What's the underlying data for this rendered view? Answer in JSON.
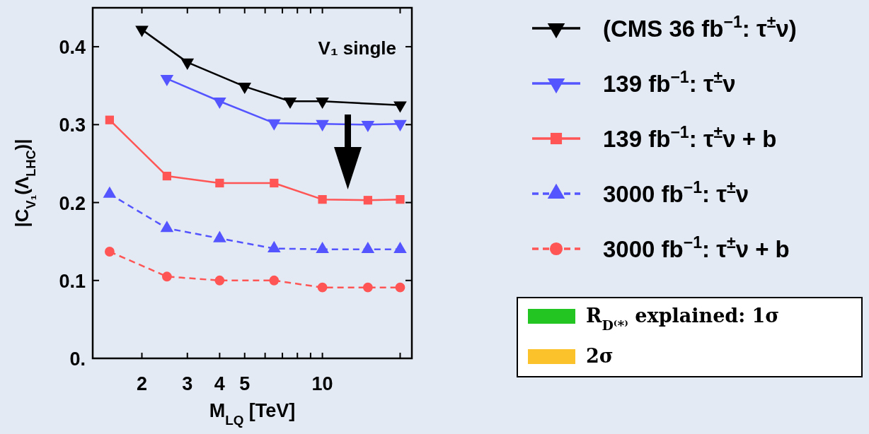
{
  "chart_data": {
    "type": "line",
    "xlabel": "M$_{LQ}$ [TeV]",
    "ylabel": "|C$_{V₁}$(Λ$_{LHC}$)|",
    "log": "x",
    "xlim": [
      1.29,
      22.2
    ],
    "ylim": [
      0,
      0.45
    ],
    "xticks": [
      2,
      3,
      4,
      5,
      {
        "value": 6,
        "label": null
      },
      {
        "value": 7,
        "label": null
      },
      {
        "value": 8,
        "label": null
      },
      {
        "value": 9,
        "label": null
      },
      10,
      {
        "value": 20,
        "label": null
      }
    ],
    "yticks": [
      {
        "value": 0,
        "label": "0."
      },
      0.1,
      0.2,
      0.3,
      0.4
    ],
    "grid": false,
    "legend": "right",
    "series": [
      {
        "name": "(CMS 36 fb$^{−1}$: τ$^{±}$ν)",
        "color": "#000000",
        "marker": "triangle-down",
        "line_style": "solid",
        "x": [
          2,
          3,
          5,
          7.5,
          10,
          20
        ],
        "values": [
          0.422,
          0.38,
          0.349,
          0.33,
          0.33,
          0.325
        ]
      },
      {
        "name": "139 fb$^{−1}$: τ$^{±}$ν",
        "color": "#5555ff",
        "marker": "triangle-down",
        "line_style": "solid",
        "x": [
          2.5,
          4,
          6.5,
          10,
          15,
          20
        ],
        "values": [
          0.359,
          0.33,
          0.302,
          0.301,
          0.3,
          0.301
        ]
      },
      {
        "name": "139 fb$^{−1}$: τ$^{±}$ν + b",
        "color": "#ff5555",
        "marker": "square",
        "line_style": "solid",
        "x": [
          1.5,
          2.5,
          4,
          6.5,
          10,
          15,
          20
        ],
        "values": [
          0.306,
          0.234,
          0.225,
          0.225,
          0.204,
          0.203,
          0.204
        ]
      },
      {
        "name": "3000 fb$^{−1}$: τ$^{±}$ν",
        "color": "#5555ff",
        "marker": "triangle",
        "line_style": "dashed",
        "x": [
          1.5,
          2.5,
          4,
          6.5,
          10,
          15,
          20
        ],
        "values": [
          0.211,
          0.167,
          0.154,
          0.141,
          0.14,
          0.14,
          0.14
        ]
      },
      {
        "name": "3000 fb$^{−1}$: τ$^{±}$ν + b",
        "color": "#ff5555",
        "marker": "circle",
        "line_style": "dashed",
        "x": [
          1.5,
          2.5,
          4,
          6.5,
          10,
          15,
          20
        ],
        "values": [
          0.137,
          0.105,
          0.1,
          0.1,
          0.091,
          0.091,
          0.091
        ]
      }
    ],
    "annotations": [
      "V₁ single",
      "R$_{D⁽*⁾}$ explained: 1σ",
      "2σ"
    ]
  }
}
